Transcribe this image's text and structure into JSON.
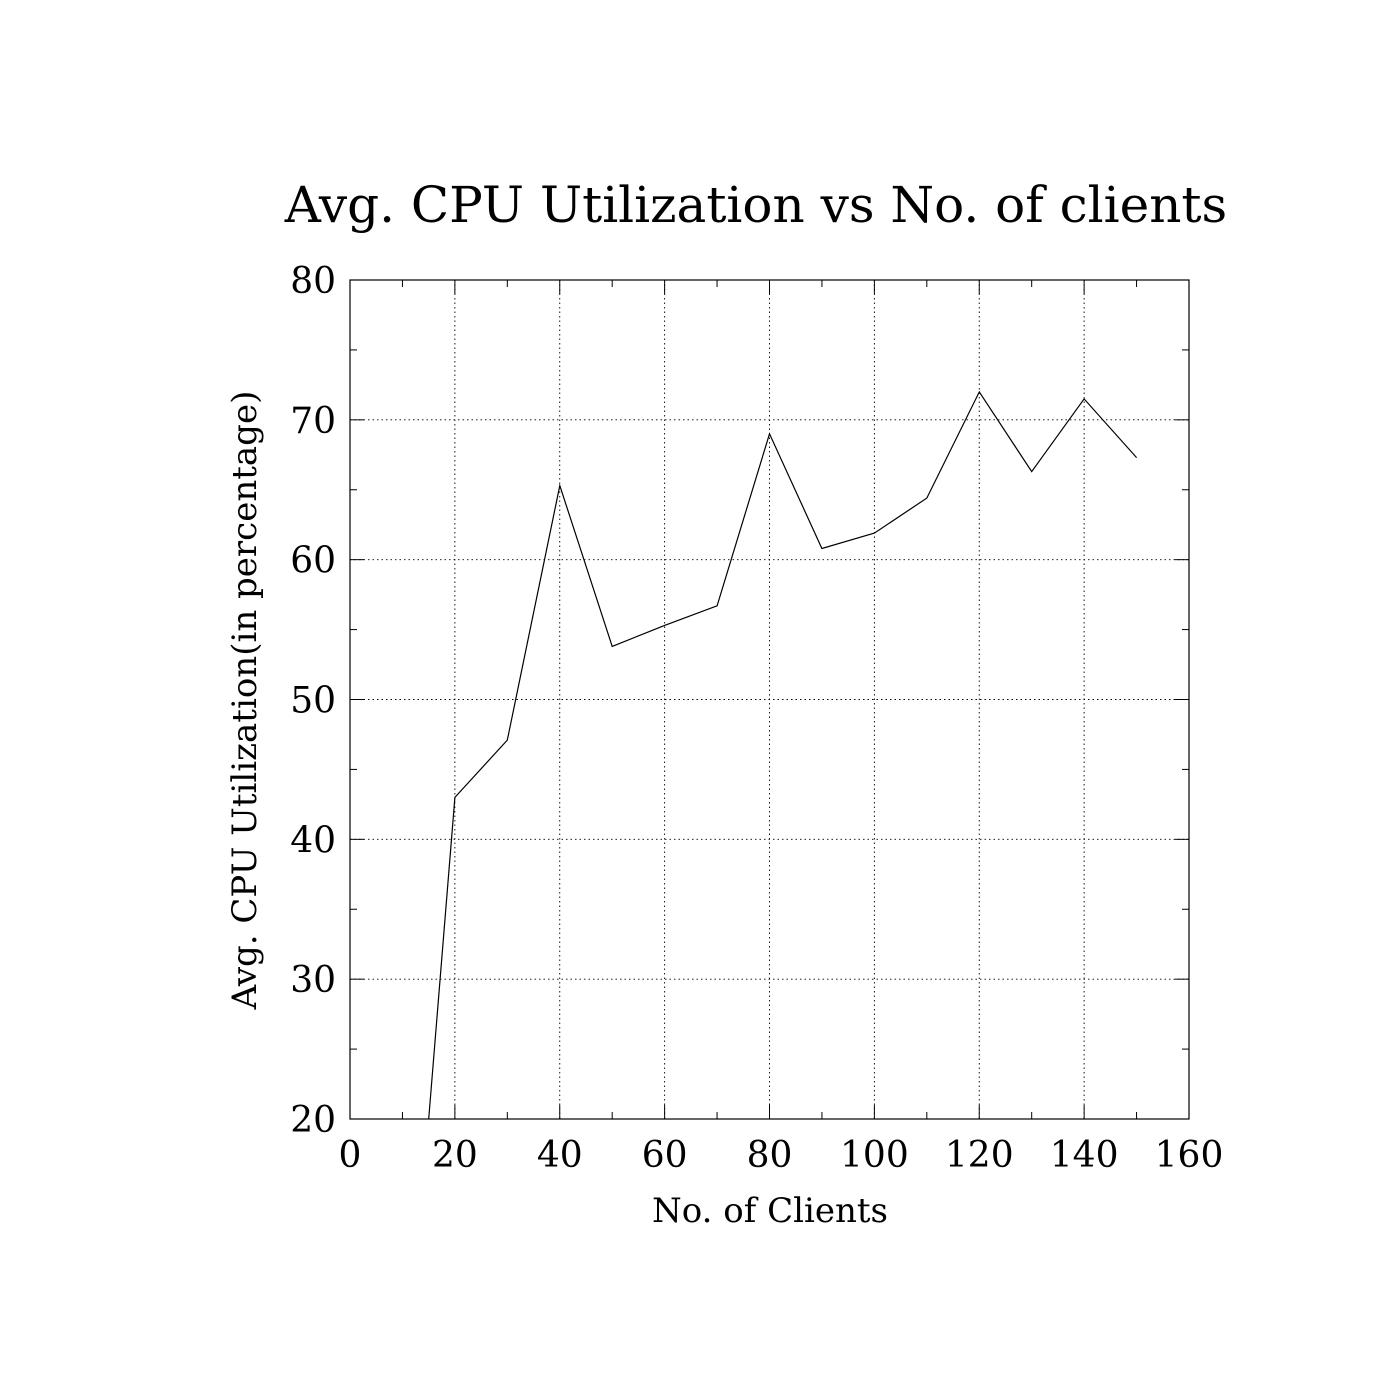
{
  "chart_data": {
    "type": "line",
    "title": "Avg. CPU Utilization vs No. of clients",
    "xlabel": "No. of Clients",
    "ylabel": "Avg. CPU Utilization(in percentage)",
    "xlim": [
      0,
      160
    ],
    "ylim": [
      20,
      80
    ],
    "xticks": [
      0,
      20,
      40,
      60,
      80,
      100,
      120,
      140,
      160
    ],
    "yticks": [
      20,
      30,
      40,
      50,
      60,
      70,
      80
    ],
    "grid": true,
    "series": [
      {
        "x": [
          15,
          20,
          30,
          40,
          50,
          60,
          70,
          80,
          90,
          100,
          110,
          120,
          130,
          140,
          150
        ],
        "y": [
          20,
          43,
          47.1,
          65.3,
          53.8,
          55.3,
          56.7,
          69,
          60.8,
          61.9,
          64.4,
          72,
          66.3,
          71.5,
          67.3
        ]
      }
    ],
    "line_color": "#000000"
  }
}
